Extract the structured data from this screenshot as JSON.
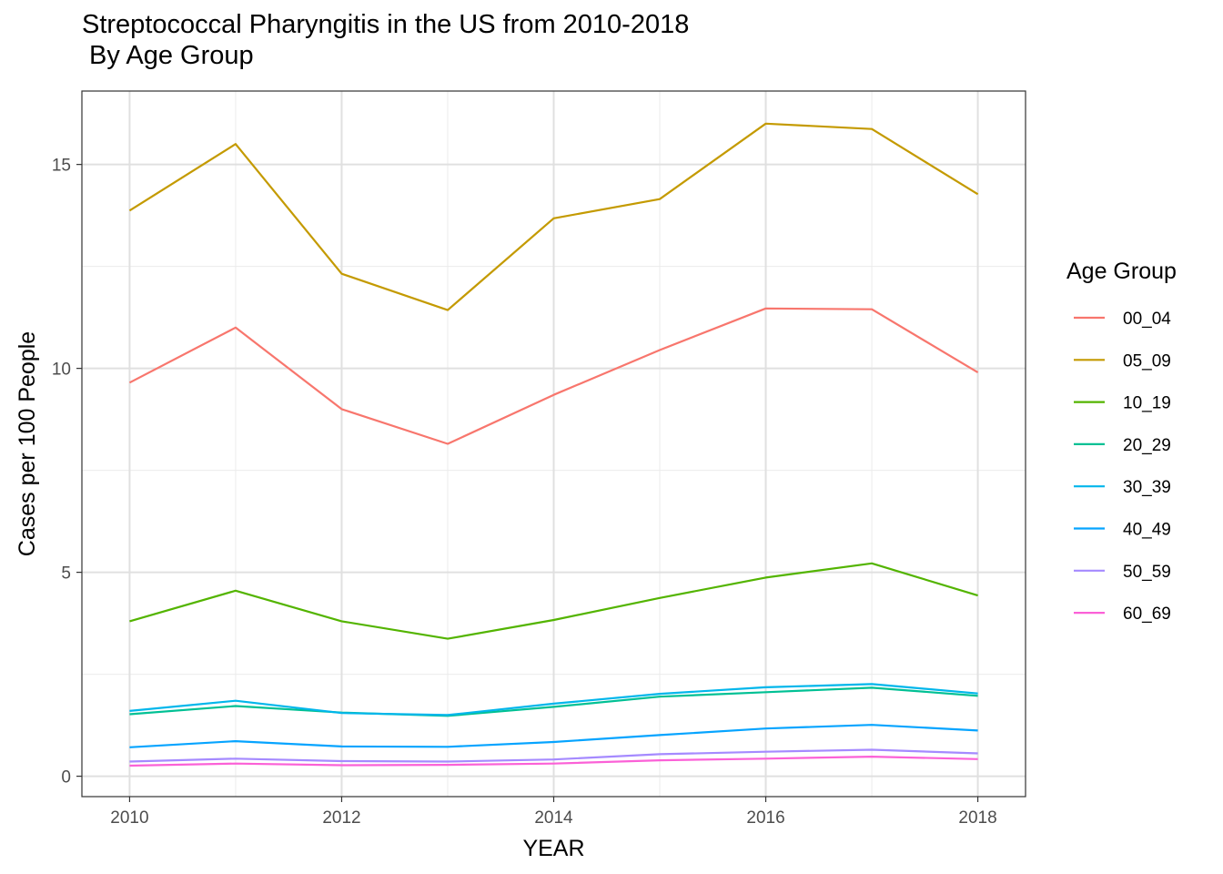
{
  "chart_data": {
    "type": "line",
    "title": [
      "Streptococcal Pharyngitis in the US from 2010-2018",
      " By Age Group"
    ],
    "xlabel": "YEAR",
    "ylabel": "Cases per 100 People",
    "x": [
      2010,
      2011,
      2012,
      2013,
      2014,
      2015,
      2016,
      2017,
      2018
    ],
    "xlim": [
      2009.55,
      2018.45
    ],
    "ylim": [
      -0.5,
      16.8
    ],
    "x_ticks": [
      2010,
      2012,
      2014,
      2016,
      2018
    ],
    "x_tick_labels": [
      "2010",
      "2012",
      "2014",
      "2016",
      "2018"
    ],
    "y_ticks": [
      0,
      5,
      10,
      15
    ],
    "y_tick_labels": [
      "0",
      "5",
      "10",
      "15"
    ],
    "grid": true,
    "legend_title": "Age Group",
    "legend_position": "right",
    "series": [
      {
        "name": "00_04",
        "color": "#F8766D",
        "values": [
          9.65,
          11.0,
          9.0,
          8.15,
          9.35,
          10.45,
          11.47,
          11.45,
          9.9
        ]
      },
      {
        "name": "05_09",
        "color": "#C49A00",
        "values": [
          13.87,
          15.5,
          12.32,
          11.43,
          13.68,
          14.15,
          16.0,
          15.87,
          14.27
        ]
      },
      {
        "name": "10_19",
        "color": "#53B400",
        "values": [
          3.8,
          4.55,
          3.8,
          3.37,
          3.83,
          4.37,
          4.87,
          5.22,
          4.43
        ]
      },
      {
        "name": "20_29",
        "color": "#00C094",
        "values": [
          1.52,
          1.72,
          1.56,
          1.48,
          1.7,
          1.95,
          2.06,
          2.17,
          1.97
        ]
      },
      {
        "name": "30_39",
        "color": "#00B6EB",
        "values": [
          1.6,
          1.85,
          1.55,
          1.5,
          1.78,
          2.02,
          2.18,
          2.26,
          2.03
        ]
      },
      {
        "name": "40_49",
        "color": "#06A4FF",
        "values": [
          0.71,
          0.86,
          0.73,
          0.72,
          0.84,
          1.01,
          1.17,
          1.26,
          1.12
        ]
      },
      {
        "name": "50_59",
        "color": "#A58AFF",
        "values": [
          0.36,
          0.43,
          0.37,
          0.36,
          0.41,
          0.54,
          0.6,
          0.65,
          0.56
        ]
      },
      {
        "name": "60_69",
        "color": "#FB61D7",
        "values": [
          0.26,
          0.31,
          0.27,
          0.28,
          0.31,
          0.39,
          0.43,
          0.48,
          0.42
        ]
      }
    ]
  }
}
